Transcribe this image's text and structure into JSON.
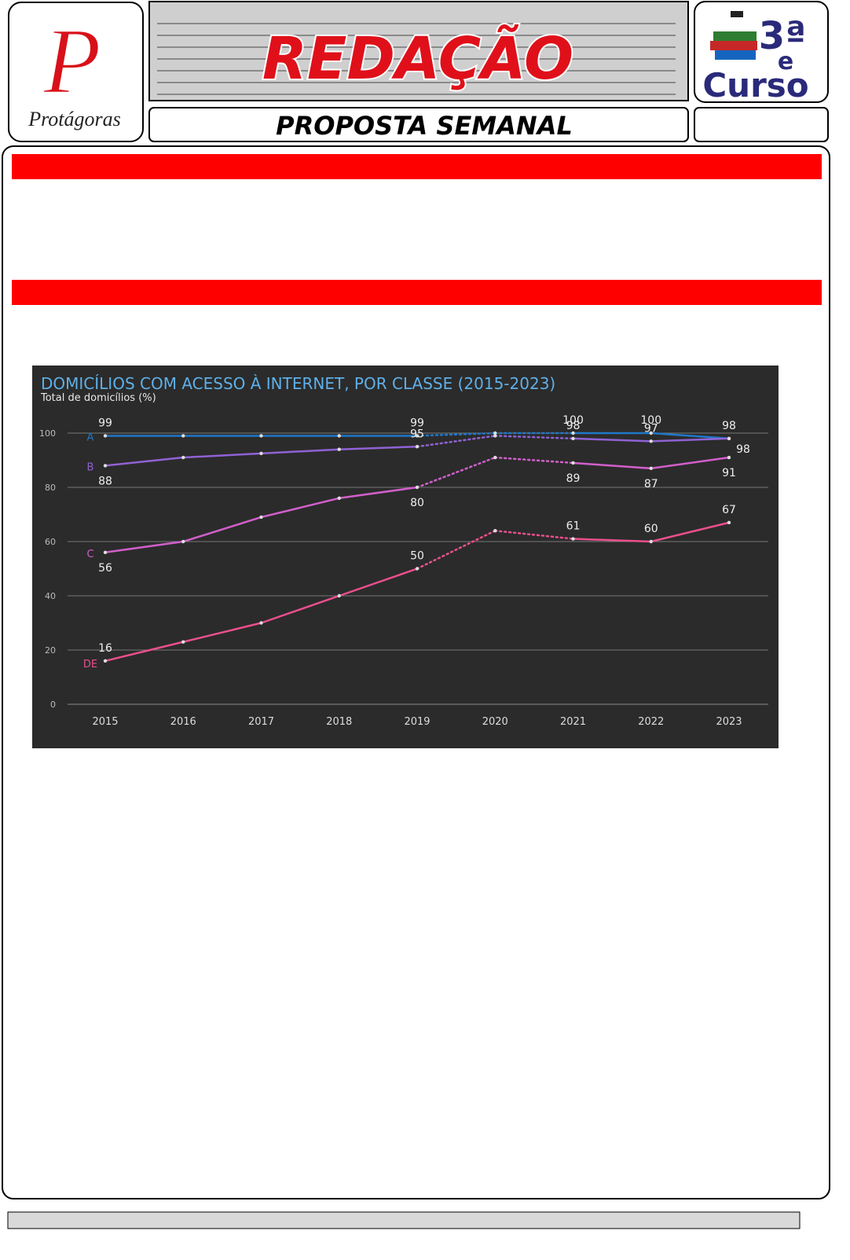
{
  "header": {
    "logo_text": "Protágoras",
    "banner_title": "REDAÇÃO",
    "subtitle": "PROPOSTA SEMANAL"
  },
  "badge": {
    "grade": "3ª",
    "conjunction": "e",
    "course": "Curso"
  },
  "chart_data": {
    "type": "line",
    "title": "DOMICÍLIOS COM ACESSO À INTERNET, POR CLASSE (2015-2023)",
    "subtitle": "Total de domicílios (%)",
    "categories": [
      "2015",
      "2016",
      "2017",
      "2018",
      "2019",
      "2020",
      "2021",
      "2022",
      "2023"
    ],
    "series": [
      {
        "name": "A",
        "color": "#1f78c8",
        "values": [
          99,
          99,
          99,
          99,
          99,
          100,
          100,
          100,
          98
        ],
        "value_labels": [
          "99",
          null,
          null,
          null,
          "99",
          null,
          "100",
          "100",
          "98"
        ]
      },
      {
        "name": "B",
        "color": "#8f62d4",
        "values": [
          88,
          91,
          92.5,
          94,
          95,
          99,
          98,
          97,
          98
        ],
        "value_labels": [
          "88",
          null,
          null,
          null,
          "95",
          null,
          "98",
          "97",
          "98"
        ]
      },
      {
        "name": "C",
        "color": "#d25fcb",
        "values": [
          56,
          60,
          69,
          76,
          80,
          91,
          89,
          87,
          91
        ],
        "value_labels": [
          "56",
          null,
          null,
          null,
          "80",
          null,
          "89",
          "87",
          "91"
        ]
      },
      {
        "name": "DE",
        "color": "#ea4f8d",
        "values": [
          16,
          23,
          30,
          40,
          50,
          64,
          61,
          60,
          67
        ],
        "value_labels": [
          "16",
          null,
          null,
          null,
          "50",
          null,
          "61",
          "60",
          "67"
        ]
      }
    ],
    "dotted_span": [
      4,
      6
    ],
    "ylim": [
      0,
      100
    ],
    "yticks": [
      0,
      20,
      40,
      60,
      80,
      100
    ],
    "grid": true
  }
}
